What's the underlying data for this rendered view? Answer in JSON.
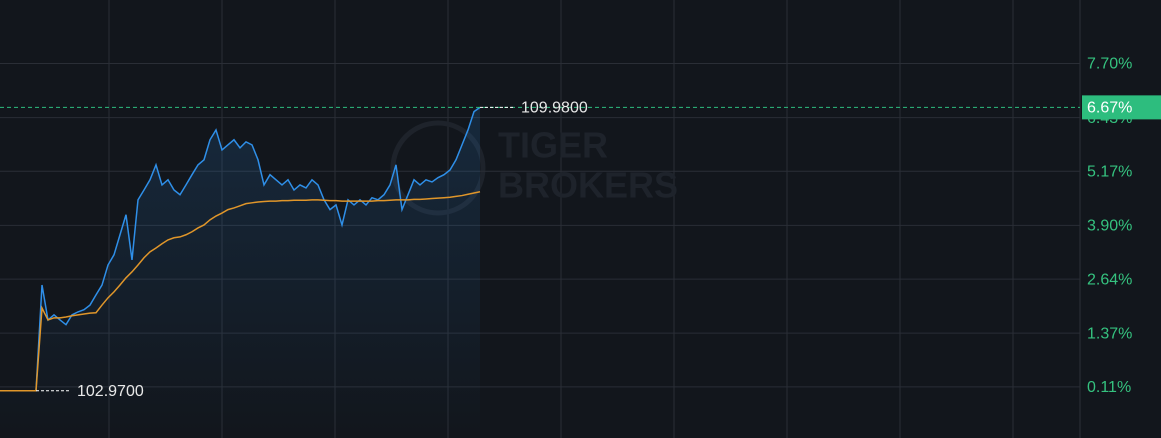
{
  "chart_data": {
    "type": "line",
    "watermark": [
      "TIGER",
      "BROKERS"
    ],
    "x": [
      0,
      1,
      2,
      3,
      4,
      5,
      6,
      7,
      8,
      9,
      10,
      11,
      12,
      13,
      14,
      15,
      16,
      17,
      18,
      19,
      20,
      21,
      22,
      23,
      24,
      25,
      26,
      27,
      28,
      29,
      30,
      31,
      32,
      33,
      34,
      35,
      36,
      37,
      38,
      39,
      40,
      41,
      42,
      43,
      44,
      45,
      46,
      47,
      48,
      49,
      50,
      51,
      52,
      53,
      54,
      55,
      56,
      57,
      58,
      59,
      60,
      61,
      62,
      63,
      64,
      65,
      66,
      67,
      68,
      69,
      70,
      71,
      72,
      73,
      74,
      75,
      76,
      77,
      78,
      79,
      80
    ],
    "xlim": [
      0,
      180
    ],
    "ylim": [
      -1.09,
      9.19
    ],
    "yticks": [
      {
        "value": 0.11,
        "label": "0.11%"
      },
      {
        "value": 1.37,
        "label": "1.37%"
      },
      {
        "value": 2.64,
        "label": "2.64%"
      },
      {
        "value": 3.9,
        "label": "3.90%"
      },
      {
        "value": 5.17,
        "label": "5.17%"
      },
      {
        "value": 6.43,
        "label": "6.43%"
      },
      {
        "value": 7.7,
        "label": "7.70%"
      }
    ],
    "grid": true,
    "current_value": {
      "value": 6.67,
      "label": "6.67%",
      "color": "#2dbd7e"
    },
    "series": [
      {
        "color": "#2f8fe8",
        "area": true,
        "values": [
          0.02,
          0.02,
          0.02,
          0.02,
          0.02,
          0.02,
          0.02,
          2.5,
          1.68,
          1.8,
          1.68,
          1.57,
          1.8,
          1.87,
          1.92,
          2.03,
          2.27,
          2.5,
          2.97,
          3.21,
          3.68,
          4.15,
          3.09,
          4.5,
          4.73,
          4.97,
          5.32,
          4.85,
          4.97,
          4.73,
          4.62,
          4.85,
          5.09,
          5.32,
          5.44,
          5.91,
          6.14,
          5.67,
          5.79,
          5.91,
          5.72,
          5.86,
          5.79,
          5.44,
          4.85,
          5.09,
          4.97,
          4.85,
          4.97,
          4.73,
          4.85,
          4.78,
          4.97,
          4.85,
          4.5,
          4.27,
          4.38,
          3.91,
          4.5,
          4.38,
          4.5,
          4.38,
          4.55,
          4.5,
          4.62,
          4.85,
          5.32,
          4.27,
          4.62,
          4.97,
          4.85,
          4.97,
          4.92,
          5.02,
          5.09,
          5.2,
          5.44,
          5.79,
          6.14,
          6.57,
          6.67
        ]
      },
      {
        "color": "#e0962a",
        "values": [
          0.02,
          0.02,
          0.02,
          0.02,
          0.02,
          0.02,
          0.02,
          1.96,
          1.68,
          1.73,
          1.73,
          1.75,
          1.78,
          1.8,
          1.82,
          1.84,
          1.85,
          2.03,
          2.2,
          2.34,
          2.5,
          2.67,
          2.81,
          2.97,
          3.14,
          3.28,
          3.37,
          3.47,
          3.56,
          3.61,
          3.63,
          3.68,
          3.75,
          3.84,
          3.91,
          4.03,
          4.12,
          4.19,
          4.27,
          4.31,
          4.36,
          4.41,
          4.43,
          4.45,
          4.46,
          4.47,
          4.47,
          4.48,
          4.48,
          4.49,
          4.49,
          4.49,
          4.5,
          4.5,
          4.49,
          4.48,
          4.48,
          4.47,
          4.47,
          4.47,
          4.47,
          4.47,
          4.47,
          4.48,
          4.48,
          4.49,
          4.5,
          4.5,
          4.5,
          4.51,
          4.51,
          4.52,
          4.53,
          4.54,
          4.55,
          4.56,
          4.58,
          4.6,
          4.63,
          4.66,
          4.69
        ]
      }
    ],
    "annotations": [
      {
        "text": "109.9800",
        "x": 80,
        "y": 6.67
      },
      {
        "text": "102.9700",
        "x": 6,
        "y": 0.02
      }
    ]
  }
}
